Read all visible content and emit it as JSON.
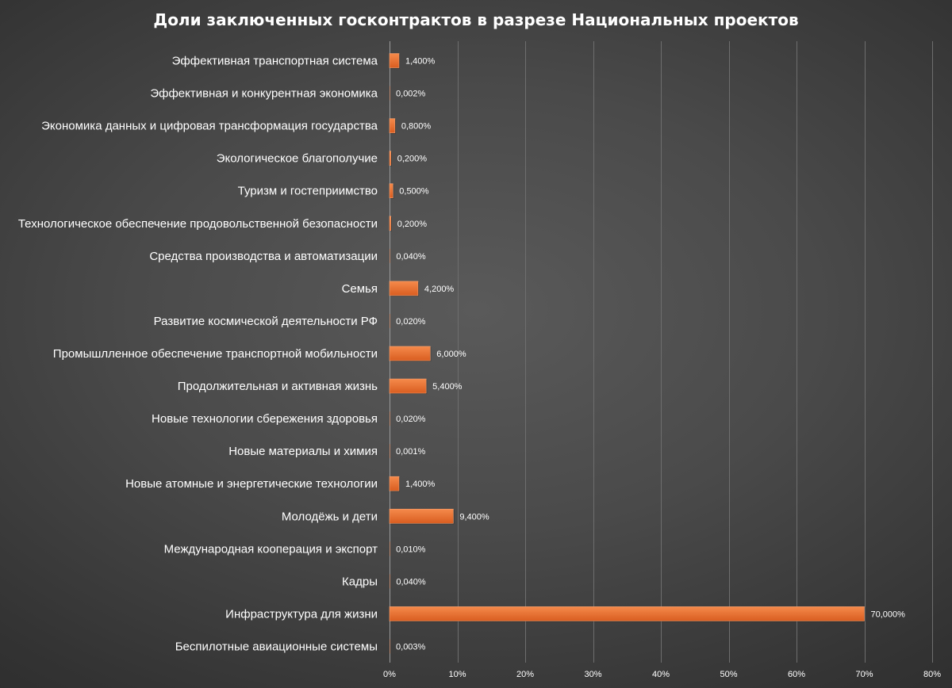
{
  "chart_data": {
    "type": "bar",
    "orientation": "horizontal",
    "title": "Доли заключенных госконтрактов в разрезе Национальных проектов",
    "categories": [
      "Эффективная транспортная система",
      "Эффективная и конкурентная экономика",
      "Экономика данных и цифровая трансформация государства",
      "Экологическое благополучие",
      "Туризм и гостеприимство",
      "Технологическое обеспечение продовольственной безопасности",
      "Средства производства и автоматизации",
      "Семья",
      "Развитие космической деятельности РФ",
      "Промышлленное обеспечение транспортной мобильности",
      "Продолжительная и активная жизнь",
      "Новые технологии сбережения здоровья",
      "Новые материалы и химия",
      "Новые атомные и энергетические технологии",
      "Молодёжь и дети",
      "Международная кооперация и экспорт",
      "Кадры",
      "Инфраструктура для жизни",
      "Беспилотные авиационные системы"
    ],
    "values": [
      1.4,
      0.002,
      0.8,
      0.2,
      0.5,
      0.2,
      0.04,
      4.2,
      0.02,
      6.0,
      5.4,
      0.02,
      0.001,
      1.4,
      9.4,
      0.01,
      0.04,
      70.0,
      0.003
    ],
    "data_labels": [
      "1,400%",
      "0,002%",
      "0,800%",
      "0,200%",
      "0,500%",
      "0,200%",
      "0,040%",
      "4,200%",
      "0,020%",
      "6,000%",
      "5,400%",
      "0,020%",
      "0,001%",
      "1,400%",
      "9,400%",
      "0,010%",
      "0,040%",
      "70,000%",
      "0,003%"
    ],
    "xlim": [
      0,
      80
    ],
    "x_ticks": [
      0,
      10,
      20,
      30,
      40,
      50,
      60,
      70,
      80
    ],
    "x_tick_labels": [
      "0%",
      "10%",
      "20%",
      "30%",
      "40%",
      "50%",
      "60%",
      "70%",
      "80%"
    ],
    "grid": true,
    "legend": "none",
    "colors": {
      "bar": "#ed7031",
      "bar_gradient_top": "#f58a4b",
      "bar_gradient_bottom": "#d95d20",
      "background": "#4a4a4a",
      "text": "#ffffff"
    }
  }
}
